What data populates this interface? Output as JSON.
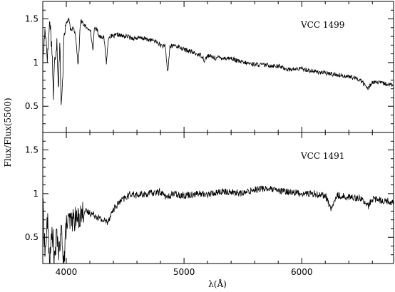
{
  "chart_data": {
    "type": "line",
    "xlabel": "λ(Å)",
    "ylabel": "Flux/Flux(5500)",
    "xlim": [
      3800,
      6780
    ],
    "x_ticks": [
      4000,
      5000,
      6000
    ],
    "x_tick_labels": [
      "4000",
      "5000",
      "6000"
    ],
    "panels": [
      {
        "label": "VCC 1499",
        "ylim": [
          0.2,
          1.7
        ],
        "y_ticks": [
          0.5,
          1,
          1.5
        ],
        "y_tick_labels": [
          "0.5",
          "1",
          "1.5"
        ],
        "x": [
          3800,
          3820,
          3840,
          3860,
          3880,
          3890,
          3900,
          3920,
          3933,
          3945,
          3955,
          3968,
          3980,
          4000,
          4020,
          4040,
          4060,
          4080,
          4101,
          4120,
          4140,
          4160,
          4180,
          4200,
          4226,
          4240,
          4260,
          4280,
          4300,
          4320,
          4340,
          4360,
          4380,
          4400,
          4440,
          4480,
          4520,
          4560,
          4600,
          4650,
          4700,
          4750,
          4800,
          4840,
          4861,
          4880,
          4920,
          5000,
          5050,
          5100,
          5150,
          5175,
          5200,
          5270,
          5300,
          5350,
          5400,
          5450,
          5500,
          5600,
          5700,
          5800,
          5890,
          6000,
          6100,
          6200,
          6300,
          6400,
          6500,
          6563,
          6600,
          6700,
          6780
        ],
        "y": [
          1.0,
          1.4,
          1.05,
          1.5,
          1.1,
          0.6,
          1.0,
          1.25,
          0.7,
          1.3,
          0.45,
          0.75,
          1.35,
          1.45,
          1.5,
          1.35,
          1.42,
          1.3,
          0.95,
          1.48,
          1.45,
          1.42,
          1.38,
          1.4,
          1.15,
          1.4,
          1.38,
          1.3,
          1.3,
          1.28,
          1.0,
          1.3,
          1.3,
          1.3,
          1.32,
          1.3,
          1.3,
          1.28,
          1.28,
          1.28,
          1.26,
          1.25,
          1.2,
          1.18,
          0.88,
          1.18,
          1.2,
          1.15,
          1.13,
          1.1,
          1.08,
          1.02,
          1.08,
          1.05,
          1.06,
          1.05,
          1.05,
          1.02,
          1.0,
          0.98,
          0.97,
          0.96,
          0.92,
          0.93,
          0.9,
          0.88,
          0.86,
          0.84,
          0.8,
          0.7,
          0.78,
          0.76,
          0.74
        ]
      },
      {
        "label": "VCC 1491",
        "ylim": [
          0.2,
          1.7
        ],
        "y_ticks": [
          0.5,
          1,
          1.5
        ],
        "y_tick_labels": [
          "0.5",
          "1",
          "1.5"
        ],
        "x": [
          3800,
          3820,
          3840,
          3860,
          3880,
          3900,
          3920,
          3940,
          3960,
          3980,
          4000,
          4050,
          4100,
          4150,
          4200,
          4250,
          4300,
          4350,
          4400,
          4450,
          4500,
          4550,
          4600,
          4700,
          4800,
          4861,
          4900,
          5000,
          5100,
          5200,
          5300,
          5400,
          5500,
          5600,
          5700,
          5800,
          5900,
          6000,
          6100,
          6200,
          6250,
          6300,
          6400,
          6500,
          6563,
          6600,
          6700,
          6780
        ],
        "y": [
          0.9,
          0.3,
          0.7,
          0.2,
          0.6,
          0.2,
          0.55,
          0.3,
          0.6,
          0.2,
          0.65,
          0.7,
          0.72,
          0.8,
          0.78,
          0.75,
          0.7,
          0.68,
          0.82,
          0.9,
          0.95,
          1.0,
          0.98,
          1.0,
          1.02,
          0.95,
          1.0,
          0.98,
          1.0,
          0.99,
          1.02,
          1.02,
          1.0,
          1.05,
          1.06,
          1.03,
          1.02,
          1.0,
          1.0,
          0.98,
          0.82,
          0.98,
          0.96,
          0.95,
          0.85,
          0.94,
          0.92,
          0.9
        ]
      }
    ]
  }
}
